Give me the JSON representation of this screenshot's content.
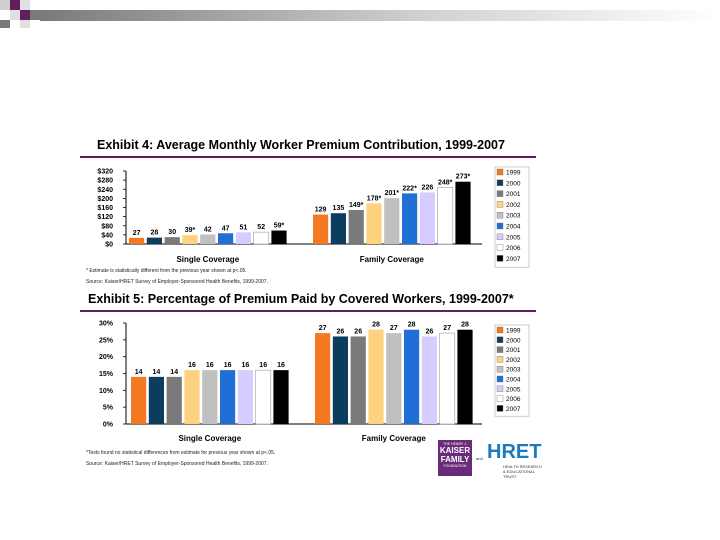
{
  "theme": {
    "accent": "#5f1f5f",
    "bar_light": "#c8c8c8"
  },
  "logos": {
    "kaiser_top": "THE HENRY J.",
    "kaiser_main1": "KAISER",
    "kaiser_main2": "FAMILY",
    "kaiser_bottom": "FOUNDATION",
    "and": "and",
    "hret": "HRET",
    "hret_sub": "HEALTH RESEARCH & EDUCATIONAL TRUST"
  },
  "legend": {
    "years": [
      "1999",
      "2000",
      "2001",
      "2002",
      "2003",
      "2004",
      "2005",
      "2006",
      "2007"
    ],
    "colors": [
      "#f47920",
      "#0d3d5e",
      "#7a7a7a",
      "#ffd27f",
      "#c0c0c0",
      "#1f6fd6",
      "#d6ccff",
      "#ffffff",
      "#000000"
    ]
  },
  "chart_data": [
    {
      "type": "bar",
      "title": "Exhibit 4: Average Monthly Worker Premium Contribution, 1999-2007",
      "ylabel": "",
      "yticks": [
        "$320",
        "$280",
        "$240",
        "$200",
        "$160",
        "$120",
        "$80",
        "$40",
        "$0"
      ],
      "ylim": [
        0,
        320
      ],
      "categories": [
        "Single Coverage",
        "Family Coverage"
      ],
      "series_names": [
        "1999",
        "2000",
        "2001",
        "2002",
        "2003",
        "2004",
        "2005",
        "2006",
        "2007"
      ],
      "groups": [
        {
          "name": "Single Coverage",
          "values": [
            27,
            28,
            30,
            39,
            42,
            47,
            51,
            52,
            59
          ],
          "labels": [
            "27",
            "28",
            "30",
            "39*",
            "42",
            "47",
            "51",
            "52",
            "59*"
          ]
        },
        {
          "name": "Family Coverage",
          "values": [
            129,
            135,
            149,
            178,
            201,
            222,
            226,
            248,
            273
          ],
          "labels": [
            "129",
            "135",
            "149*",
            "178*",
            "201*",
            "222*",
            "226",
            "248*",
            "273*"
          ]
        }
      ],
      "footnote": "* Estimate is statistically different from the previous year shown at p<.05.",
      "source": "Source: Kaiser/HRET Survey of Employer-Sponsored Health Benefits, 1999-2007."
    },
    {
      "type": "bar",
      "title": "Exhibit 5: Percentage of Premium Paid by Covered Workers, 1999-2007*",
      "ylabel": "",
      "yticks": [
        "30%",
        "25%",
        "20%",
        "15%",
        "10%",
        "5%",
        "0%"
      ],
      "ylim": [
        0,
        30
      ],
      "categories": [
        "Single Coverage",
        "Family Coverage"
      ],
      "series_names": [
        "1999",
        "2000",
        "2001",
        "2002",
        "2003",
        "2004",
        "2005",
        "2006",
        "2007"
      ],
      "groups": [
        {
          "name": "Single Coverage",
          "values": [
            14,
            14,
            14,
            16,
            16,
            16,
            16,
            16,
            16
          ],
          "labels": [
            "14",
            "14",
            "14",
            "16",
            "16",
            "16",
            "16",
            "16",
            "16"
          ]
        },
        {
          "name": "Family Coverage",
          "values": [
            27,
            26,
            26,
            28,
            27,
            28,
            26,
            27,
            28
          ],
          "labels": [
            "27",
            "26",
            "26",
            "28",
            "27",
            "28",
            "26",
            "27",
            "28"
          ]
        }
      ],
      "footnote": "*Tests found no statistical differences from estimate for previous year shown at p<.05.",
      "source": "Source: Kaiser/HRET Survey of Employer-Sponsored Health Benefits, 1999-2007."
    }
  ]
}
